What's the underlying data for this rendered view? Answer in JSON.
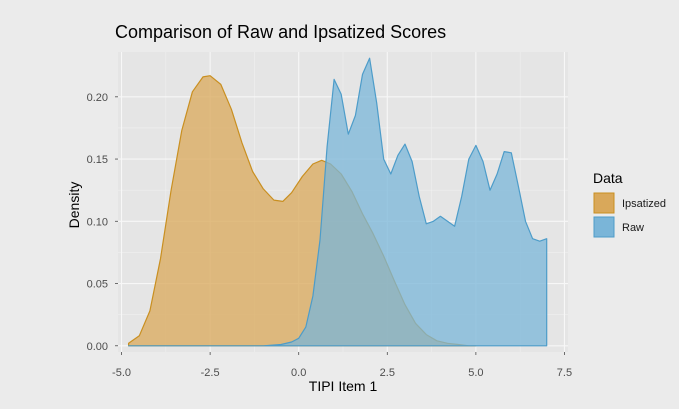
{
  "chart_data": {
    "type": "area",
    "title": "Comparison of Raw and Ipsatized Scores",
    "xlabel": "TIPI Item 1",
    "ylabel": "Density",
    "xlim": [
      -5.1,
      7.6
    ],
    "ylim": [
      -0.005,
      0.236
    ],
    "x_ticks": [
      -5.0,
      -2.5,
      0.0,
      2.5,
      5.0,
      7.5
    ],
    "x_tick_labels": [
      "-5.0",
      "-2.5",
      "0.0",
      "2.5",
      "5.0",
      "7.5"
    ],
    "y_ticks": [
      0.0,
      0.05,
      0.1,
      0.15,
      0.2
    ],
    "y_tick_labels": [
      "0.00",
      "0.05",
      "0.10",
      "0.15",
      "0.20"
    ],
    "grid": true,
    "legend": {
      "title": "Data",
      "placement": "right",
      "entries": [
        "Ipsatized",
        "Raw"
      ]
    },
    "series": [
      {
        "name": "Ipsatized",
        "fill": "#d9a85a",
        "stroke": "#c98f20",
        "x": [
          -4.8,
          -4.5,
          -4.2,
          -3.9,
          -3.6,
          -3.3,
          -3.0,
          -2.7,
          -2.5,
          -2.2,
          -1.9,
          -1.6,
          -1.3,
          -1.0,
          -0.7,
          -0.45,
          -0.2,
          0.1,
          0.4,
          0.65,
          0.9,
          1.2,
          1.5,
          1.8,
          2.1,
          2.4,
          2.7,
          3.0,
          3.3,
          3.6,
          3.9,
          4.2,
          4.5,
          4.8,
          5.0
        ],
        "values": [
          0.002,
          0.008,
          0.028,
          0.07,
          0.125,
          0.173,
          0.204,
          0.216,
          0.217,
          0.21,
          0.19,
          0.163,
          0.14,
          0.126,
          0.117,
          0.116,
          0.123,
          0.136,
          0.146,
          0.149,
          0.146,
          0.138,
          0.124,
          0.106,
          0.09,
          0.072,
          0.052,
          0.033,
          0.018,
          0.009,
          0.004,
          0.002,
          0.001,
          0.0,
          0.0
        ]
      },
      {
        "name": "Raw",
        "fill": "#7ab5d8",
        "stroke": "#4d9cc9",
        "x": [
          -4.8,
          -4.0,
          -3.0,
          -2.0,
          -1.0,
          -0.5,
          -0.2,
          0.0,
          0.2,
          0.4,
          0.6,
          0.8,
          1.0,
          1.2,
          1.4,
          1.6,
          1.8,
          2.0,
          2.2,
          2.4,
          2.6,
          2.8,
          3.0,
          3.2,
          3.4,
          3.6,
          3.8,
          4.0,
          4.2,
          4.4,
          4.6,
          4.8,
          5.0,
          5.2,
          5.4,
          5.6,
          5.8,
          6.0,
          6.2,
          6.4,
          6.6,
          6.8,
          7.0
        ],
        "values": [
          0.0,
          0.0,
          0.0,
          0.0,
          0.0,
          0.001,
          0.003,
          0.006,
          0.015,
          0.04,
          0.085,
          0.16,
          0.214,
          0.202,
          0.17,
          0.185,
          0.218,
          0.231,
          0.195,
          0.15,
          0.138,
          0.153,
          0.162,
          0.148,
          0.12,
          0.098,
          0.1,
          0.104,
          0.1,
          0.096,
          0.12,
          0.15,
          0.161,
          0.148,
          0.125,
          0.138,
          0.156,
          0.155,
          0.128,
          0.1,
          0.086,
          0.084,
          0.086
        ]
      }
    ]
  }
}
